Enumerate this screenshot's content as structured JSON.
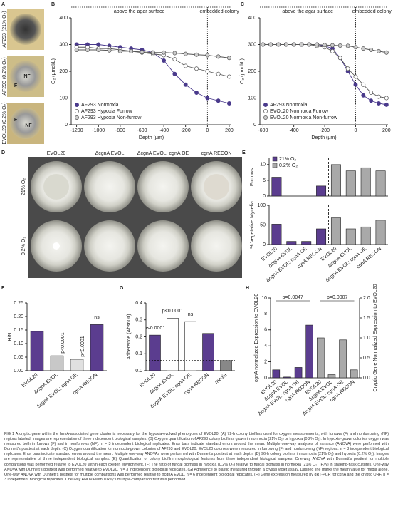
{
  "panel_letters": [
    "A",
    "B",
    "C",
    "D",
    "E",
    "F",
    "G",
    "H"
  ],
  "panel_a": {
    "labels": [
      "AF293 (21% O₂)",
      "AF293 (0.2% O₂)",
      "EVOL20 (0.2% O₂)"
    ],
    "marks": [
      "NF",
      "F",
      "F",
      "NF"
    ]
  },
  "panel_d": {
    "columns": [
      "EVOL20",
      "ΔcgnA EVOL",
      "ΔcgnA EVOL; cgnA OE",
      "cgnA RECON"
    ],
    "rows": [
      "21% O₂",
      "0.2% O₂"
    ]
  },
  "chart_data": [
    {
      "type": "line",
      "xlabel": "Depth (µm)",
      "ylabel": "O₂ (µmol/L)",
      "annotations": [
        "above the agar surface",
        "embedded colony"
      ],
      "x": [
        -1200,
        -1100,
        -1000,
        -900,
        -800,
        -700,
        -600,
        -500,
        -400,
        -300,
        -200,
        -100,
        0,
        100,
        200
      ],
      "xlim": [
        -1250,
        220
      ],
      "xticks": [
        -1200,
        -1000,
        -800,
        -600,
        -400,
        -200,
        0,
        200
      ],
      "ylim": [
        0,
        400
      ],
      "yticks": [
        0,
        100,
        200,
        300,
        400
      ],
      "series": [
        {
          "name": "AF293 Normoxia",
          "color": "#4a3a8c",
          "fill": "#4a3a8c",
          "values": [
            300,
            300,
            300,
            295,
            290,
            285,
            280,
            270,
            240,
            190,
            150,
            120,
            100,
            90,
            80
          ]
        },
        {
          "name": "AF293 Hypoxia Furrow",
          "color": "#555555",
          "fill": "#ffffff",
          "values": [
            290,
            290,
            285,
            285,
            280,
            275,
            270,
            265,
            260,
            245,
            220,
            210,
            200,
            190,
            180
          ]
        },
        {
          "name": "AF293 Hypoxia Non-furrow",
          "color": "#555555",
          "fill": "#cccccc",
          "values": [
            280,
            280,
            280,
            278,
            275,
            275,
            272,
            270,
            270,
            268,
            265,
            262,
            260,
            255,
            250
          ]
        }
      ]
    },
    {
      "type": "line",
      "xlabel": "Depth (µm)",
      "ylabel": "O₂ (µmol/L)",
      "annotations": [
        "above the agar surface",
        "embedded colony"
      ],
      "x": [
        -600,
        -550,
        -500,
        -450,
        -400,
        -350,
        -300,
        -250,
        -200,
        -150,
        -100,
        -50,
        0,
        50,
        100,
        150,
        200
      ],
      "xlim": [
        -620,
        210
      ],
      "xticks": [
        -600,
        -400,
        -200,
        0,
        200
      ],
      "ylim": [
        0,
        400
      ],
      "yticks": [
        0,
        100,
        200,
        300,
        400
      ],
      "series": [
        {
          "name": "AF293 Normoxia",
          "color": "#4a3a8c",
          "fill": "#4a3a8c",
          "values": [
            300,
            300,
            300,
            300,
            300,
            300,
            300,
            300,
            295,
            285,
            250,
            200,
            150,
            110,
            90,
            80,
            75
          ]
        },
        {
          "name": "EVOL20 Normoxia Furrow",
          "color": "#555555",
          "fill": "#ffffff",
          "values": [
            300,
            300,
            300,
            300,
            300,
            300,
            300,
            295,
            290,
            275,
            250,
            210,
            180,
            150,
            120,
            105,
            100
          ]
        },
        {
          "name": "EVOL20 Normoxia Non-furrow",
          "color": "#555555",
          "fill": "#cccccc",
          "values": [
            300,
            300,
            300,
            300,
            300,
            300,
            300,
            300,
            298,
            297,
            296,
            295,
            290,
            285,
            280,
            275,
            270
          ]
        }
      ]
    },
    {
      "type": "bar",
      "ylabel": "Furrows",
      "ylim": [
        0,
        12
      ],
      "yticks": [
        0,
        5,
        10
      ],
      "series": [
        {
          "name": "21% O₂",
          "color": "#5b3d8f",
          "values": [
            6,
            0,
            0,
            3.2
          ]
        },
        {
          "name": "0.2% O₂",
          "color": "#a9a9a9",
          "values": [
            10,
            8,
            9,
            8
          ]
        }
      ]
    },
    {
      "type": "bar",
      "ylabel": "% Vegetative Mycelia",
      "ylim": [
        0,
        100
      ],
      "yticks": [
        0,
        50,
        100
      ],
      "categories": [
        "EVOL20",
        "ΔcgnA EVOL",
        "ΔcgnA EVOL; cgnA OE",
        "cgnA RECON"
      ],
      "series": [
        {
          "color": "#5b3d8f",
          "values": [
            52,
            8,
            8,
            40
          ]
        },
        {
          "color": "#a9a9a9",
          "values": [
            68,
            40,
            45,
            62
          ]
        }
      ]
    },
    {
      "type": "bar",
      "ylabel": "H/N",
      "ylim": [
        0,
        0.25
      ],
      "yticks": [
        {
          "value": 0,
          "label": "0.00"
        },
        0.05,
        {
          "value": 0.1,
          "label": "0.10"
        },
        0.15,
        {
          "value": 0.2,
          "label": "0.20"
        },
        0.25
      ],
      "categories": [
        "EVOL20",
        "ΔcgnA EVOL",
        "ΔcgnA EVOL; cgnA OE",
        "cgnA RECON"
      ],
      "bar_labels": [
        null,
        "p<0.0001",
        "p<0.0001",
        "ns"
      ],
      "series": [
        {
          "colors": [
            "#5b3d8f",
            "#c8c8c8",
            "#e0e0e0",
            "#5b3d8f"
          ],
          "values": [
            0.145,
            0.055,
            0.042,
            0.17
          ]
        }
      ]
    },
    {
      "type": "bar",
      "ylabel": "Adherence (Abs600)",
      "ylim": [
        0,
        0.4
      ],
      "yticks": [
        {
          "value": 0,
          "label": "0.0"
        },
        0.1,
        0.2,
        0.3,
        0.4
      ],
      "categories": [
        "EVOL20",
        "ΔcgnA EVOL",
        "ΔcgnA EVOL; cgnA OE",
        "cgnA RECON",
        "media"
      ],
      "bar_labels": [
        "p<0.0001",
        "p<0.0001",
        "ns",
        null,
        null
      ],
      "series": [
        {
          "colors": [
            "#5b3d8f",
            "#ffffff",
            "#ffffff",
            "#5b3d8f",
            "#888888"
          ],
          "values": [
            0.21,
            0.31,
            0.29,
            0.22,
            0.06
          ]
        }
      ]
    },
    {
      "type": "bar",
      "ylabel": "cgnA normalized Expression to EVOL20",
      "y2label": "Cryptic Gene Normalized Expression to EVOL20",
      "ylim": [
        0,
        10
      ],
      "yticks": [
        0,
        2,
        4,
        6,
        8,
        10
      ],
      "y2lim": [
        0,
        2
      ],
      "y2ticks": [
        {
          "value": 0,
          "label": "0.0"
        },
        0.5,
        {
          "value": 1,
          "label": "1.0"
        },
        1.5,
        {
          "value": 2,
          "label": "2.0"
        }
      ],
      "categories": [
        "EVOL20",
        "ΔcgnA EVOL",
        "ΔcgnA EVOL; cgnA OE",
        "cgnA RECON"
      ],
      "annotations": [
        "p=0.0047",
        "p=0.0007"
      ],
      "series": [
        {
          "color": "#5b3d8f",
          "values": [
            1,
            0.1,
            1.3,
            6.6
          ]
        },
        {
          "color": "#a9a9a9",
          "axis": "y2",
          "values": [
            1,
            0.08,
            0.95,
            0.2
          ]
        }
      ]
    }
  ],
  "caption": "FIG 1 A cryptic gene within the hrmA-associated gene cluster is necessary for the hypoxia-evolved phenotypes of EVOL20. (A) 72-h colony biofilms used for oxygen measurements, with furrows (F) and nonfurrowing (NF) regions labeled. Images are representative of three independent biological samples. (B) Oxygen quantification of AF293 colony biofilms grown in normoxia (21% O₂) or hypoxia (0.2% O₂). In hypoxia-grown colonies oxygen was measured both in furrows (F) and in nonfurrows (NF). n = 3 independent biological replicates. Error bars indicate standard errors around the mean. Multiple one-way analyses of variance (ANOVA) were performed with Dunnett's posttest at each depth. (C) Oxygen quantification for normoxia-grown colonies of AF293 and EVOL20. EVOL20 colonies were measured in furrowing (F) and nonfurrowing (NF) regions. n = 3 independent biological replicates. Error bars indicate standard errors around the mean. Multiple one-way ANOVAs were performed with Dunnett's posttest at each depth. (D) 96-h colony biofilms in normoxia (21% O₂) and hypoxia (0.2% O₂). Images are representative of three independent biological samples. (E) Quantification of colony biofilm morphological features from three independent biological samples. One-way ANOVA with Dunnett's posttest for multiple comparisons was performed relative to EVOL20 within each oxygen environment. (F) The ratio of fungal biomass in hypoxia (0.2% O₂) relative to fungal biomass in normoxia (21% O₂) (H/N) in shaking-flask cultures. One-way ANOVA with Dunnett's posttest was performed relative to EVOL20. n = 3 independent biological replicates. (G) Adherence to plastic measured through a crystal violet assay. Dashed line marks the mean value for media alone. One-way ANOVA with Dunnett's posttest for multiple comparisons was performed relative to ΔcgnA EVOL. n = 6 independent biological replicates. (H) Gene expression measured by qRT-PCR for cgnA and the cryptic ORF. n = 3 independent biological replicates. One-way ANOVA with Tukey's multiple-comparison test was performed."
}
